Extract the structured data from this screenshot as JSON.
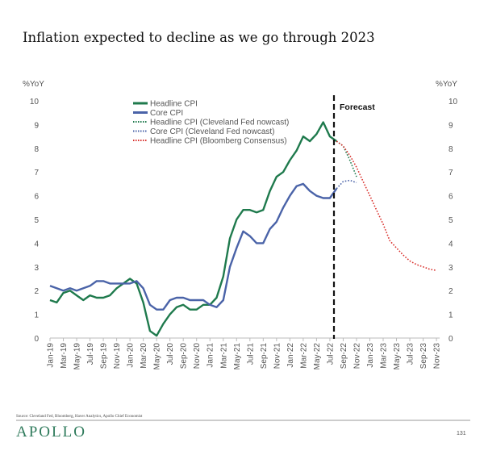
{
  "title": "Inflation expected to decline as we go through 2023",
  "source": "Source: Cleveland Fed, Bloomberg, Haver Analytics, Apollo Chief Economist",
  "logo": "APOLLO",
  "page_number": "131",
  "chart_data": {
    "type": "line",
    "title": "Inflation expected to decline as we go through 2023",
    "ylabel_left": "%YoY",
    "ylabel_right": "%YoY",
    "ylim": [
      0,
      10
    ],
    "yticks": [
      "0",
      "1",
      "2",
      "3",
      "4",
      "5",
      "6",
      "7",
      "8",
      "9",
      "10"
    ],
    "start_month": "Jan-19",
    "xticks": [
      "Jan-19",
      "Mar-19",
      "May-19",
      "Jul-19",
      "Sep-19",
      "Nov-19",
      "Jan-20",
      "Mar-20",
      "May-20",
      "Jul-20",
      "Sep-20",
      "Nov-20",
      "Jan-21",
      "Mar-21",
      "May-21",
      "Jul-21",
      "Sep-21",
      "Nov-21",
      "Jan-22",
      "Mar-22",
      "May-22",
      "Jul-22",
      "Sep-22",
      "Nov-22",
      "Jan-23",
      "Mar-23",
      "May-23",
      "Jul-23",
      "Sep-23",
      "Nov-23"
    ],
    "forecast_label": "Forecast",
    "forecast_start_index": 43,
    "series": [
      {
        "name": "Headline CPI",
        "color": "#1f7a4d",
        "style": "solid",
        "start_index": 0,
        "values": [
          1.6,
          1.5,
          1.9,
          2.0,
          1.8,
          1.6,
          1.8,
          1.7,
          1.7,
          1.8,
          2.1,
          2.3,
          2.5,
          2.3,
          1.5,
          0.3,
          0.1,
          0.6,
          1.0,
          1.3,
          1.4,
          1.2,
          1.2,
          1.4,
          1.4,
          1.7,
          2.6,
          4.2,
          5.0,
          5.4,
          5.4,
          5.3,
          5.4,
          6.2,
          6.8,
          7.0,
          7.5,
          7.9,
          8.5,
          8.3,
          8.6,
          9.1,
          8.5,
          8.3
        ]
      },
      {
        "name": "Core CPI",
        "color": "#4a63a8",
        "style": "solid",
        "start_index": 0,
        "values": [
          2.2,
          2.1,
          2.0,
          2.1,
          2.0,
          2.1,
          2.2,
          2.4,
          2.4,
          2.3,
          2.3,
          2.3,
          2.3,
          2.4,
          2.1,
          1.4,
          1.2,
          1.2,
          1.6,
          1.7,
          1.7,
          1.6,
          1.6,
          1.6,
          1.4,
          1.3,
          1.6,
          3.0,
          3.8,
          4.5,
          4.3,
          4.0,
          4.0,
          4.6,
          4.9,
          5.5,
          6.0,
          6.4,
          6.5,
          6.2,
          6.0,
          5.9,
          5.9,
          6.3
        ]
      },
      {
        "name": "Headline CPI (Cleveland Fed nowcast)",
        "color": "#1f7a4d",
        "style": "dotted",
        "start_index": 43,
        "values": [
          8.3,
          8.1,
          7.5,
          6.8
        ]
      },
      {
        "name": "Core CPI (Cleveland Fed nowcast)",
        "color": "#4a63a8",
        "style": "dotted",
        "start_index": 43,
        "values": [
          6.3,
          6.6,
          6.65,
          6.55
        ]
      },
      {
        "name": "Headline CPI (Bloomberg Consensus)",
        "color": "#d9302c",
        "style": "dotted",
        "start_index": 43,
        "values": [
          8.3,
          8.1,
          7.7,
          7.2,
          6.6,
          6.0,
          5.4,
          4.8,
          4.1,
          3.8,
          3.5,
          3.25,
          3.1,
          3.0,
          2.9,
          2.85
        ]
      }
    ],
    "legend_position": "top-center",
    "grid": false
  }
}
